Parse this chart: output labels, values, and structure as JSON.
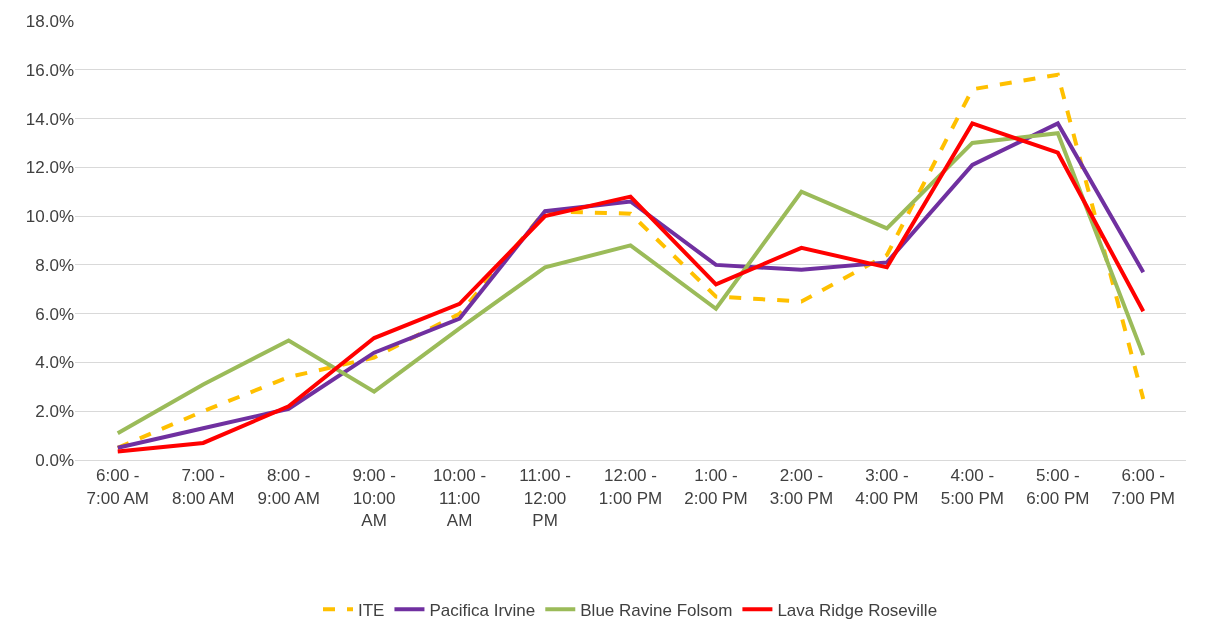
{
  "chart_data": {
    "type": "line",
    "categories": [
      "6:00 - 7:00 AM",
      "7:00 - 8:00 AM",
      "8:00 - 9:00 AM",
      "9:00 - 10:00 AM",
      "10:00 - 11:00 AM",
      "11:00 - 12:00 PM",
      "12:00 - 1:00 PM",
      "1:00 - 2:00 PM",
      "2:00 - 3:00 PM",
      "3:00 - 4:00 PM",
      "4:00 - 5:00 PM",
      "5:00 - 6:00 PM",
      "6:00 - 7:00 PM"
    ],
    "series": [
      {
        "name": "ITE",
        "color": "#ffc000",
        "line_style": "dashed",
        "values": [
          0.5,
          2.0,
          3.4,
          4.2,
          6.0,
          10.2,
          10.1,
          6.7,
          6.5,
          8.4,
          15.2,
          15.8,
          2.5
        ]
      },
      {
        "name": "Pacifica Irvine",
        "color": "#7030a0",
        "line_style": "solid",
        "values": [
          0.5,
          1.3,
          2.1,
          4.4,
          5.8,
          10.2,
          10.6,
          8.0,
          7.8,
          8.1,
          12.1,
          13.8,
          7.7
        ]
      },
      {
        "name": "Blue Ravine Folsom",
        "color": "#9bbb59",
        "line_style": "solid",
        "values": [
          1.1,
          3.1,
          4.9,
          2.8,
          5.4,
          7.9,
          8.8,
          6.2,
          11.0,
          9.5,
          13.0,
          13.4,
          4.3
        ]
      },
      {
        "name": "Lava Ridge Roseville",
        "color": "#ff0000",
        "line_style": "solid",
        "values": [
          0.35,
          0.7,
          2.2,
          5.0,
          6.4,
          10.0,
          10.8,
          7.2,
          8.7,
          7.9,
          13.8,
          12.6,
          6.1
        ]
      }
    ],
    "ylim": [
      0,
      18
    ],
    "yticks": [
      {
        "value": 0,
        "label": "0.0%"
      },
      {
        "value": 2,
        "label": "2.0%"
      },
      {
        "value": 4,
        "label": "4.0%"
      },
      {
        "value": 6,
        "label": "6.0%"
      },
      {
        "value": 8,
        "label": "8.0%"
      },
      {
        "value": 10,
        "label": "10.0%"
      },
      {
        "value": 12,
        "label": "12.0%"
      },
      {
        "value": 14,
        "label": "14.0%"
      },
      {
        "value": 16,
        "label": "16.0%"
      },
      {
        "value": 18,
        "label": "18.0%"
      }
    ],
    "grid": "y",
    "legend": "bottom",
    "marker": "none"
  }
}
